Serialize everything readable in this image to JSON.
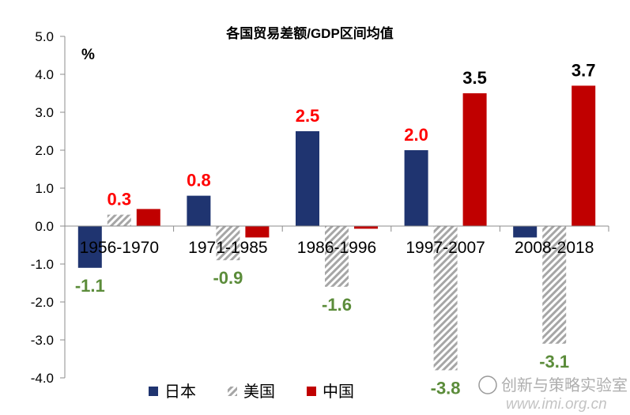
{
  "chart_data": {
    "type": "bar",
    "title": "各国贸易差额/GDP区间均值",
    "unit_label": "%",
    "categories": [
      "1956-1970",
      "1971-1985",
      "1986-1996",
      "1997-2007",
      "2008-2018"
    ],
    "series": [
      {
        "name": "日本",
        "values": [
          -1.1,
          0.8,
          2.5,
          2.0,
          -0.3
        ],
        "color": "#1f3470",
        "label_color": "#1f3470",
        "labels": [
          "-1.1",
          "0.8",
          "2.5",
          "2.0",
          null
        ]
      },
      {
        "name": "美国",
        "values": [
          0.3,
          -0.9,
          -1.6,
          -3.8,
          -3.1
        ],
        "color": "#a6a6a6",
        "label_color": "#5b8c3a",
        "labels": [
          null,
          "-0.9",
          "-1.6",
          "-3.8",
          "-3.1"
        ]
      },
      {
        "name": "中国",
        "values": [
          0.45,
          -0.3,
          -0.07,
          3.5,
          3.7
        ],
        "color": "#c00000",
        "label_color": "#000000",
        "labels": [
          null,
          null,
          null,
          "3.5",
          "3.7"
        ]
      }
    ],
    "value_labels": [
      {
        "text": "-1.1",
        "series": 0,
        "cat": 0,
        "color": "#5b8c3a"
      },
      {
        "text": "0.3",
        "series": 1,
        "cat": 0,
        "color": "#ff0000"
      },
      {
        "text": "0.8",
        "series": 0,
        "cat": 1,
        "color": "#ff0000"
      },
      {
        "text": "-0.9",
        "series": 1,
        "cat": 1,
        "color": "#5b8c3a"
      },
      {
        "text": "2.5",
        "series": 0,
        "cat": 2,
        "color": "#ff0000"
      },
      {
        "text": "-1.6",
        "series": 1,
        "cat": 2,
        "color": "#5b8c3a"
      },
      {
        "text": "2.0",
        "series": 0,
        "cat": 3,
        "color": "#ff0000"
      },
      {
        "text": "-3.8",
        "series": 1,
        "cat": 3,
        "color": "#5b8c3a"
      },
      {
        "text": "3.5",
        "series": 2,
        "cat": 3,
        "color": "#000000"
      },
      {
        "text": "-3.1",
        "series": 1,
        "cat": 4,
        "color": "#5b8c3a"
      },
      {
        "text": "3.7",
        "series": 2,
        "cat": 4,
        "color": "#000000"
      }
    ],
    "ylim": [
      -4.0,
      5.0
    ],
    "yticks": [
      "5.0",
      "4.0",
      "3.0",
      "2.0",
      "1.0",
      "0.0",
      "-1.0",
      "-2.0",
      "-3.0",
      "-4.0"
    ],
    "ytick_values": [
      5,
      4,
      3,
      2,
      1,
      0,
      -1,
      -2,
      -3,
      -4
    ],
    "grid": false,
    "legend_position": "bottom"
  },
  "watermark": {
    "line1": "创新与策略实验室",
    "line2": "www.imi.org.cn"
  }
}
